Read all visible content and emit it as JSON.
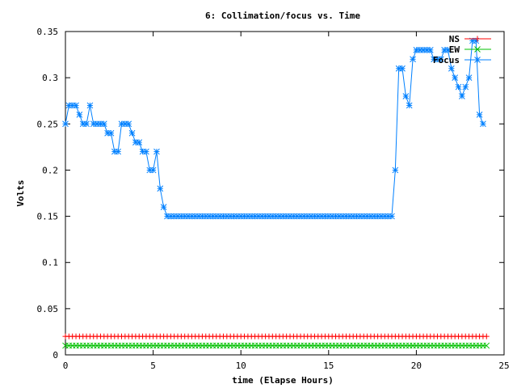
{
  "chart_data": {
    "type": "line",
    "title": "6: Collimation/focus vs. Time",
    "xlabel": "time (Elapse Hours)",
    "ylabel": "Volts",
    "xlim": [
      0,
      25
    ],
    "ylim": [
      0,
      0.35
    ],
    "xticks": [
      0,
      5,
      10,
      15,
      20,
      25
    ],
    "xtick_labels": [
      "0",
      "5",
      "10",
      "15",
      "20",
      "25"
    ],
    "yticks": [
      0,
      0.05,
      0.1,
      0.15,
      0.2,
      0.25,
      0.3,
      0.35
    ],
    "ytick_labels": [
      "0",
      "0.05",
      "0.1",
      "0.15",
      "0.2",
      "0.25",
      "0.3",
      "0.35"
    ],
    "grid": false,
    "legend_position": "top-right",
    "series": [
      {
        "name": "NS",
        "color": "#ff0000",
        "marker": "plus",
        "x": [
          0,
          24
        ],
        "y": [
          0.02,
          0.02
        ],
        "sample_step": 0.2
      },
      {
        "name": "EW",
        "color": "#00c000",
        "marker": "cross",
        "x": [
          0,
          24
        ],
        "y": [
          0.01,
          0.01
        ],
        "sample_step": 0.2
      },
      {
        "name": "Focus",
        "color": "#0080ff",
        "marker": "star",
        "sample_step": 0.2,
        "x": [
          0,
          0.1,
          0.8,
          0.9,
          1.3,
          1.6,
          1.7,
          1.8,
          1.9,
          2.0,
          2.3,
          2.7,
          2.8,
          3.1,
          3.2,
          3.5,
          3.8,
          3.9,
          4.2,
          4.4,
          4.7,
          4.8,
          5.0,
          5.2,
          5.4,
          5.6,
          5.7,
          18.7,
          18.8,
          18.95,
          19.3,
          19.4,
          19.6,
          19.8,
          20.0,
          20.8,
          21.0,
          21.4,
          21.6,
          21.9,
          22.1,
          22.3,
          22.5,
          22.7,
          22.9,
          23.0,
          23.2,
          23.5,
          23.7,
          23.9
        ],
        "y": [
          0.25,
          0.27,
          0.26,
          0.25,
          0.27,
          0.25,
          0.24,
          0.25,
          0.26,
          0.25,
          0.24,
          0.23,
          0.22,
          0.26,
          0.25,
          0.25,
          0.24,
          0.23,
          0.23,
          0.22,
          0.21,
          0.2,
          0.2,
          0.22,
          0.18,
          0.16,
          0.15,
          0.15,
          0.2,
          0.31,
          0.31,
          0.28,
          0.27,
          0.32,
          0.33,
          0.33,
          0.32,
          0.32,
          0.33,
          0.31,
          0.3,
          0.29,
          0.28,
          0.29,
          0.3,
          0.3,
          0.34,
          0.26,
          0.25,
          0.24
        ]
      }
    ]
  }
}
